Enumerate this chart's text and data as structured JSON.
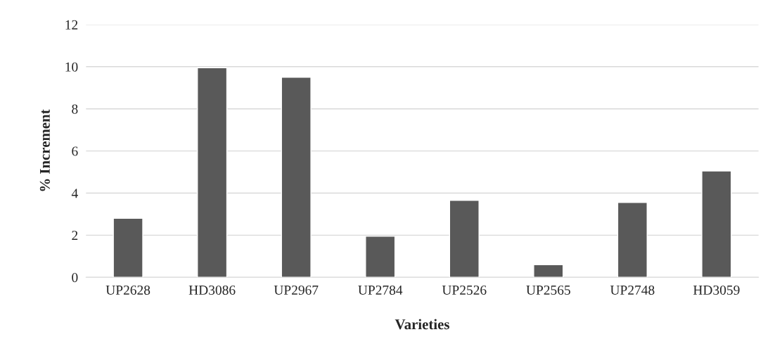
{
  "chart_data": {
    "type": "bar",
    "xlabel": "Varieties",
    "ylabel": "% Increment",
    "categories": [
      "UP2628",
      "HD3086",
      "UP2967",
      "UP2784",
      "UP2526",
      "UP2565",
      "UP2748",
      "HD3059"
    ],
    "values": [
      2.8,
      9.95,
      9.5,
      1.95,
      3.65,
      0.6,
      3.55,
      5.05
    ],
    "color": "#595959",
    "ylim": [
      0,
      12
    ],
    "yticks": [
      0,
      2,
      4,
      6,
      8,
      10,
      12
    ],
    "grid": "y",
    "legend": false
  }
}
